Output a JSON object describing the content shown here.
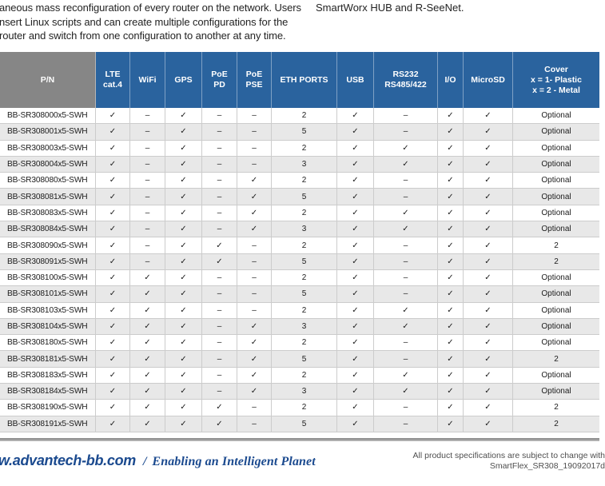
{
  "colors": {
    "header_blue": "#2a639e",
    "header_gray": "#868686",
    "row_alt": "#e8e8e8",
    "border": "#cccccc",
    "footer_blue": "#1b4a8f"
  },
  "intro": {
    "left_lines": [
      "aneous mass reconfiguration of every router on the network. Users",
      "nsert Linux scripts and can create multiple configurations for the",
      "router and switch from one configuration to another at any time."
    ],
    "right_line": "SmartWorx HUB and R-SeeNet."
  },
  "table": {
    "columns": [
      "P/N",
      "LTE\ncat.4",
      "WiFi",
      "GPS",
      "PoE\nPD",
      "PoE\nPSE",
      "ETH PORTS",
      "USB",
      "RS232\nRS485/422",
      "I/O",
      "MicroSD",
      "Cover\nx = 1- Plastic\nx = 2 - Metal"
    ],
    "rows": [
      [
        "BB-SR308000x5-SWH",
        "✓",
        "–",
        "✓",
        "–",
        "–",
        "2",
        "✓",
        "–",
        "✓",
        "✓",
        "Optional"
      ],
      [
        "BB-SR308001x5-SWH",
        "✓",
        "–",
        "✓",
        "–",
        "–",
        "5",
        "✓",
        "–",
        "✓",
        "✓",
        "Optional"
      ],
      [
        "BB-SR308003x5-SWH",
        "✓",
        "–",
        "✓",
        "–",
        "–",
        "2",
        "✓",
        "✓",
        "✓",
        "✓",
        "Optional"
      ],
      [
        "BB-SR308004x5-SWH",
        "✓",
        "–",
        "✓",
        "–",
        "–",
        "3",
        "✓",
        "✓",
        "✓",
        "✓",
        "Optional"
      ],
      [
        "BB-SR308080x5-SWH",
        "✓",
        "–",
        "✓",
        "–",
        "✓",
        "2",
        "✓",
        "–",
        "✓",
        "✓",
        "Optional"
      ],
      [
        "BB-SR308081x5-SWH",
        "✓",
        "–",
        "✓",
        "–",
        "✓",
        "5",
        "✓",
        "–",
        "✓",
        "✓",
        "Optional"
      ],
      [
        "BB-SR308083x5-SWH",
        "✓",
        "–",
        "✓",
        "–",
        "✓",
        "2",
        "✓",
        "✓",
        "✓",
        "✓",
        "Optional"
      ],
      [
        "BB-SR308084x5-SWH",
        "✓",
        "–",
        "✓",
        "–",
        "✓",
        "3",
        "✓",
        "✓",
        "✓",
        "✓",
        "Optional"
      ],
      [
        "BB-SR308090x5-SWH",
        "✓",
        "–",
        "✓",
        "✓",
        "–",
        "2",
        "✓",
        "–",
        "✓",
        "✓",
        "2"
      ],
      [
        "BB-SR308091x5-SWH",
        "✓",
        "–",
        "✓",
        "✓",
        "–",
        "5",
        "✓",
        "–",
        "✓",
        "✓",
        "2"
      ],
      [
        "BB-SR308100x5-SWH",
        "✓",
        "✓",
        "✓",
        "–",
        "–",
        "2",
        "✓",
        "–",
        "✓",
        "✓",
        "Optional"
      ],
      [
        "BB-SR308101x5-SWH",
        "✓",
        "✓",
        "✓",
        "–",
        "–",
        "5",
        "✓",
        "–",
        "✓",
        "✓",
        "Optional"
      ],
      [
        "BB-SR308103x5-SWH",
        "✓",
        "✓",
        "✓",
        "–",
        "–",
        "2",
        "✓",
        "✓",
        "✓",
        "✓",
        "Optional"
      ],
      [
        "BB-SR308104x5-SWH",
        "✓",
        "✓",
        "✓",
        "–",
        "✓",
        "3",
        "✓",
        "✓",
        "✓",
        "✓",
        "Optional"
      ],
      [
        "BB-SR308180x5-SWH",
        "✓",
        "✓",
        "✓",
        "–",
        "✓",
        "2",
        "✓",
        "–",
        "✓",
        "✓",
        "Optional"
      ],
      [
        "BB-SR308181x5-SWH",
        "✓",
        "✓",
        "✓",
        "–",
        "✓",
        "5",
        "✓",
        "–",
        "✓",
        "✓",
        "2"
      ],
      [
        "BB-SR308183x5-SWH",
        "✓",
        "✓",
        "✓",
        "–",
        "✓",
        "2",
        "✓",
        "✓",
        "✓",
        "✓",
        "Optional"
      ],
      [
        "BB-SR308184x5-SWH",
        "✓",
        "✓",
        "✓",
        "–",
        "✓",
        "3",
        "✓",
        "✓",
        "✓",
        "✓",
        "Optional"
      ],
      [
        "BB-SR308190x5-SWH",
        "✓",
        "✓",
        "✓",
        "✓",
        "–",
        "2",
        "✓",
        "–",
        "✓",
        "✓",
        "2"
      ],
      [
        "BB-SR308191x5-SWH",
        "✓",
        "✓",
        "✓",
        "✓",
        "–",
        "5",
        "✓",
        "–",
        "✓",
        "✓",
        "2"
      ]
    ]
  },
  "footer": {
    "site": "w.advantech-bb.com",
    "separator": "/",
    "tagline": "Enabling an Intelligent Planet",
    "note_line1": "All product specifications are subject to change with",
    "note_line2": "SmartFlex_SR308_19092017d"
  }
}
